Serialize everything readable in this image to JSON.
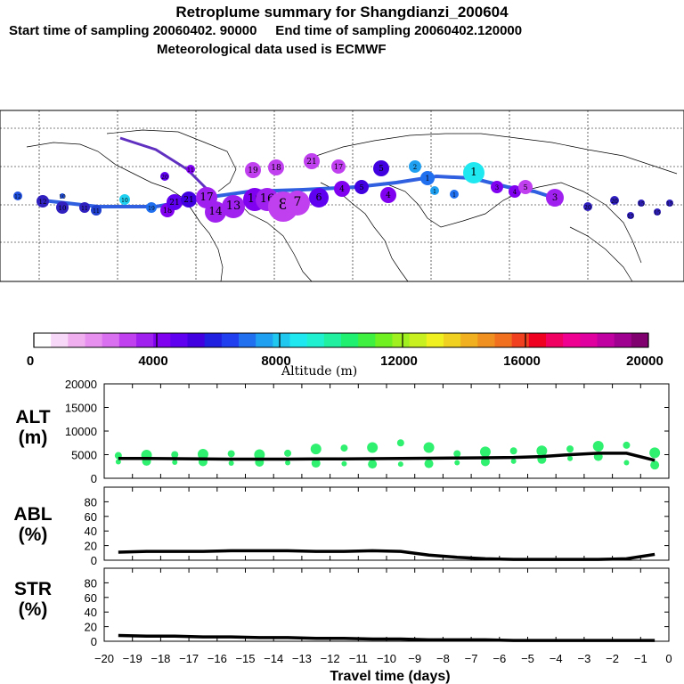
{
  "titles": {
    "main": "Retroplume summary for Shangdianzi_200604",
    "sampling": "Start time of sampling 20060402. 90000     End time of sampling 20060402.120000",
    "met": "Meteorological data used is ECMWF"
  },
  "colorbar": {
    "caption": "Altitude (m)",
    "ticks": [
      "0",
      "4000",
      "8000",
      "12000",
      "16000",
      "20000"
    ],
    "colors": [
      "#ffffff",
      "#f8d8f8",
      "#f0b0f0",
      "#e890f0",
      "#d870f0",
      "#c040f0",
      "#a020f0",
      "#8000f0",
      "#6000f0",
      "#4000e0",
      "#2020e0",
      "#2040f0",
      "#2070f0",
      "#20a0f0",
      "#20c8f0",
      "#20e8f0",
      "#20f0d0",
      "#20f0a0",
      "#20f070",
      "#40f040",
      "#70f020",
      "#a0f020",
      "#c8f020",
      "#f0f020",
      "#f0d020",
      "#f0b020",
      "#f09020",
      "#f07020",
      "#f04020",
      "#f00020",
      "#f00060",
      "#f00090",
      "#e000a0",
      "#c000a0",
      "#a00090",
      "#800070"
    ]
  },
  "map_labels": [
    "12",
    "10",
    "11",
    "19",
    "18",
    "21",
    "17",
    "16",
    "14",
    "13",
    "2",
    "1",
    "3",
    "4",
    "5",
    "6",
    "7",
    "8",
    "9",
    "20",
    "15"
  ],
  "chart_data": [
    {
      "type": "line",
      "title": "ALT (m)",
      "ylabel": "ALT (m)",
      "ylim": [
        0,
        20000
      ],
      "yticks": [
        "20000",
        "15000",
        "10000",
        "5000",
        "0"
      ],
      "x": [
        -19.5,
        -18.5,
        -17.5,
        -16.5,
        -15.5,
        -14.5,
        -13.5,
        -12.5,
        -11.5,
        -10.5,
        -9.5,
        -8.5,
        -7.5,
        -6.5,
        -5.5,
        -4.5,
        -3.5,
        -2.5,
        -1.5,
        -0.5
      ],
      "values": [
        4200,
        4200,
        4150,
        4100,
        4050,
        4050,
        4050,
        4100,
        4100,
        4150,
        4200,
        4250,
        4300,
        4350,
        4400,
        4600,
        5000,
        5300,
        5300,
        3800
      ],
      "scatter": [
        {
          "x": -19.5,
          "y": 3500
        },
        {
          "x": -19.5,
          "y": 4800
        },
        {
          "x": -18.5,
          "y": 3600
        },
        {
          "x": -18.5,
          "y": 4900
        },
        {
          "x": -17.5,
          "y": 3400
        },
        {
          "x": -17.5,
          "y": 5000
        },
        {
          "x": -16.5,
          "y": 3500
        },
        {
          "x": -16.5,
          "y": 5100
        },
        {
          "x": -15.5,
          "y": 3200
        },
        {
          "x": -15.5,
          "y": 5200
        },
        {
          "x": -14.5,
          "y": 3400
        },
        {
          "x": -14.5,
          "y": 5000
        },
        {
          "x": -13.5,
          "y": 3300
        },
        {
          "x": -13.5,
          "y": 5300
        },
        {
          "x": -12.5,
          "y": 3200
        },
        {
          "x": -12.5,
          "y": 6200
        },
        {
          "x": -11.5,
          "y": 3100
        },
        {
          "x": -11.5,
          "y": 6400
        },
        {
          "x": -10.5,
          "y": 3000
        },
        {
          "x": -10.5,
          "y": 6500
        },
        {
          "x": -9.5,
          "y": 3000
        },
        {
          "x": -9.5,
          "y": 7500
        },
        {
          "x": -8.5,
          "y": 3100
        },
        {
          "x": -8.5,
          "y": 6500
        },
        {
          "x": -7.5,
          "y": 3300
        },
        {
          "x": -7.5,
          "y": 5200
        },
        {
          "x": -6.5,
          "y": 3500
        },
        {
          "x": -6.5,
          "y": 5600
        },
        {
          "x": -5.5,
          "y": 3600
        },
        {
          "x": -5.5,
          "y": 5800
        },
        {
          "x": -4.5,
          "y": 4000
        },
        {
          "x": -4.5,
          "y": 5800
        },
        {
          "x": -3.5,
          "y": 4200
        },
        {
          "x": -3.5,
          "y": 6200
        },
        {
          "x": -2.5,
          "y": 4600
        },
        {
          "x": -2.5,
          "y": 6800
        },
        {
          "x": -1.5,
          "y": 3300
        },
        {
          "x": -1.5,
          "y": 7000
        },
        {
          "x": -0.5,
          "y": 2800
        },
        {
          "x": -0.5,
          "y": 5400
        }
      ]
    },
    {
      "type": "line",
      "title": "ABL (%)",
      "ylabel": "ABL (%)",
      "ylim": [
        0,
        100
      ],
      "yticks": [
        "80",
        "60",
        "40",
        "20",
        "0"
      ],
      "x": [
        -19.5,
        -18.5,
        -17.5,
        -16.5,
        -15.5,
        -14.5,
        -13.5,
        -12.5,
        -11.5,
        -10.5,
        -9.5,
        -8.5,
        -7.5,
        -6.5,
        -5.5,
        -4.5,
        -3.5,
        -2.5,
        -1.5,
        -0.5
      ],
      "values": [
        11,
        12,
        12,
        12,
        13,
        13,
        13,
        12,
        12,
        13,
        12,
        7,
        4,
        2,
        1,
        1,
        1,
        1,
        2,
        8
      ]
    },
    {
      "type": "line",
      "title": "STR (%)",
      "ylabel": "STR (%)",
      "ylim": [
        0,
        100
      ],
      "yticks": [
        "80",
        "60",
        "40",
        "20",
        "0"
      ],
      "x": [
        -19.5,
        -18.5,
        -17.5,
        -16.5,
        -15.5,
        -14.5,
        -13.5,
        -12.5,
        -11.5,
        -10.5,
        -9.5,
        -8.5,
        -7.5,
        -6.5,
        -5.5,
        -4.5,
        -3.5,
        -2.5,
        -1.5,
        -0.5
      ],
      "values": [
        8,
        7,
        7,
        6,
        6,
        5,
        5,
        4,
        4,
        3,
        3,
        2,
        2,
        2,
        1,
        1,
        1,
        1,
        1,
        1
      ]
    }
  ],
  "xaxis": {
    "label": "Travel time (days)",
    "ticks": [
      "−20",
      "−19",
      "−18",
      "−17",
      "−16",
      "−15",
      "−14",
      "−13",
      "−12",
      "−11",
      "−10",
      "−9",
      "−8",
      "−7",
      "−6",
      "−5",
      "−4",
      "−3",
      "−2",
      "−1",
      "0"
    ]
  },
  "panel_labels": {
    "alt": "ALT\n(m)",
    "abl": "ABL\n(%)",
    "str": "STR\n(%)"
  }
}
